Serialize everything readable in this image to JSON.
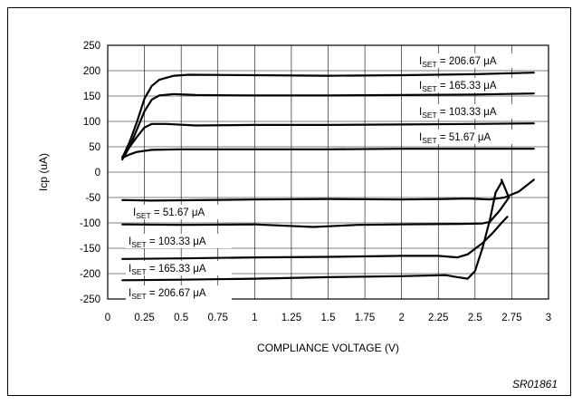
{
  "chart_data": {
    "type": "line",
    "xlabel": "COMPLIANCE VOLTAGE (V)",
    "ylabel": "Icp (uA)",
    "figure_id": "SR01861",
    "xlim": [
      0,
      3
    ],
    "ylim": [
      -250,
      250
    ],
    "grid": true,
    "x_ticks": [
      "0",
      "0.25",
      "0.5",
      "0.75",
      "1",
      "1.25",
      "1.5",
      "1.75",
      "2",
      "2.25",
      "2.5",
      "2.75",
      "3"
    ],
    "y_ticks": [
      "250",
      "200",
      "150",
      "100",
      "50",
      "0",
      "-50",
      "-100",
      "-150",
      "-200",
      "-250"
    ],
    "series": [
      {
        "name": "I_SET = 206.67 μA",
        "label": {
          "sub": "SET",
          "value": " = 206.67 μA"
        },
        "points": [
          [
            0.1,
            28
          ],
          [
            0.15,
            60
          ],
          [
            0.2,
            100
          ],
          [
            0.25,
            145
          ],
          [
            0.3,
            170
          ],
          [
            0.35,
            182
          ],
          [
            0.45,
            190
          ],
          [
            0.55,
            192
          ],
          [
            1.0,
            191
          ],
          [
            1.5,
            190
          ],
          [
            2.0,
            191
          ],
          [
            2.5,
            193
          ],
          [
            2.75,
            195
          ],
          [
            2.9,
            196
          ]
        ]
      },
      {
        "name": "I_SET = 165.33 μA",
        "label": {
          "sub": "SET",
          "value": " = 165.33 μA"
        },
        "points": [
          [
            0.1,
            25
          ],
          [
            0.15,
            50
          ],
          [
            0.2,
            85
          ],
          [
            0.25,
            120
          ],
          [
            0.3,
            143
          ],
          [
            0.35,
            151
          ],
          [
            0.45,
            154
          ],
          [
            0.6,
            152
          ],
          [
            1.0,
            151
          ],
          [
            1.5,
            151
          ],
          [
            2.0,
            152
          ],
          [
            2.5,
            153
          ],
          [
            2.9,
            155
          ]
        ]
      },
      {
        "name": "I_SET = 103.33 μA",
        "label": {
          "sub": "SET",
          "value": " = 103.33 μA"
        },
        "points": [
          [
            0.1,
            30
          ],
          [
            0.15,
            50
          ],
          [
            0.2,
            70
          ],
          [
            0.25,
            88
          ],
          [
            0.3,
            95
          ],
          [
            0.4,
            95
          ],
          [
            0.6,
            92
          ],
          [
            1.0,
            93
          ],
          [
            1.5,
            93
          ],
          [
            2.0,
            94
          ],
          [
            2.5,
            95
          ],
          [
            2.9,
            96
          ]
        ]
      },
      {
        "name": "I_SET = 51.67 μA",
        "label": {
          "sub": "SET",
          "value": " = 51.67 μA"
        },
        "points": [
          [
            0.1,
            28
          ],
          [
            0.15,
            35
          ],
          [
            0.2,
            40
          ],
          [
            0.3,
            44
          ],
          [
            0.5,
            45
          ],
          [
            1.0,
            45
          ],
          [
            1.5,
            45
          ],
          [
            2.0,
            46
          ],
          [
            2.5,
            46
          ],
          [
            2.9,
            46
          ]
        ]
      },
      {
        "name": "I_SET = 51.67 μA",
        "label": {
          "sub": "SET",
          "value": " = 51.67 μA"
        },
        "points": [
          [
            0.1,
            -55
          ],
          [
            0.3,
            -56
          ],
          [
            1.0,
            -54
          ],
          [
            1.5,
            -53
          ],
          [
            2.0,
            -54
          ],
          [
            2.3,
            -53
          ],
          [
            2.45,
            -52
          ],
          [
            2.6,
            -54
          ],
          [
            2.7,
            -50
          ],
          [
            2.8,
            -38
          ],
          [
            2.9,
            -15
          ]
        ]
      },
      {
        "name": "I_SET = 103.33 μA",
        "label": {
          "sub": "SET",
          "value": " = 103.33 μA"
        },
        "points": [
          [
            0.1,
            -103
          ],
          [
            0.5,
            -104
          ],
          [
            1.0,
            -103
          ],
          [
            1.4,
            -108
          ],
          [
            1.7,
            -104
          ],
          [
            2.0,
            -103
          ],
          [
            2.4,
            -102
          ],
          [
            2.55,
            -101
          ],
          [
            2.6,
            -98
          ],
          [
            2.67,
            -75
          ],
          [
            2.73,
            -50
          ],
          [
            2.68,
            -15
          ]
        ]
      },
      {
        "name": "I_SET = 165.33 μA",
        "label": {
          "sub": "SET",
          "value": " = 165.33 μA"
        },
        "points": [
          [
            0.1,
            -171
          ],
          [
            0.5,
            -170
          ],
          [
            1.0,
            -168
          ],
          [
            1.5,
            -167
          ],
          [
            2.0,
            -165
          ],
          [
            2.25,
            -165
          ],
          [
            2.38,
            -168
          ],
          [
            2.45,
            -162
          ],
          [
            2.55,
            -140
          ],
          [
            2.62,
            -120
          ],
          [
            2.68,
            -100
          ],
          [
            2.72,
            -88
          ]
        ]
      },
      {
        "name": "I_SET = 206.67 μA",
        "label": {
          "sub": "SET",
          "value": " = 206.67 μA"
        },
        "points": [
          [
            0.1,
            -213
          ],
          [
            0.5,
            -212
          ],
          [
            1.0,
            -210
          ],
          [
            1.5,
            -207
          ],
          [
            2.0,
            -205
          ],
          [
            2.3,
            -203
          ],
          [
            2.38,
            -207
          ],
          [
            2.45,
            -210
          ],
          [
            2.5,
            -195
          ],
          [
            2.55,
            -150
          ],
          [
            2.6,
            -95
          ],
          [
            2.64,
            -40
          ],
          [
            2.68,
            -20
          ]
        ]
      }
    ]
  }
}
